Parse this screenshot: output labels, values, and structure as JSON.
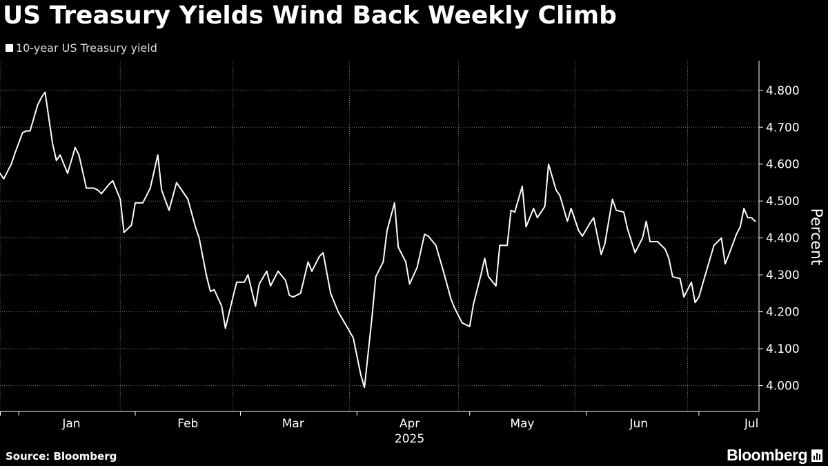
{
  "title": "US Treasury Yields Wind Back Weekly Climb",
  "legend": {
    "label": "10-year US Treasury yield",
    "color": "#ffffff"
  },
  "source": "Source: Bloomberg",
  "logo": {
    "text": "Bloomberg",
    "icon": "bloomberg-terminal-icon"
  },
  "chart_data": {
    "type": "line",
    "title": "US Treasury Yields Wind Back Weekly Climb",
    "ylabel": "Percent",
    "xlabel": "2025",
    "ylim": [
      3.93,
      4.88
    ],
    "yticks": [
      4.0,
      4.1,
      4.2,
      4.3,
      4.4,
      4.5,
      4.6,
      4.7,
      4.8
    ],
    "ytick_labels": [
      "4.000",
      "4.100",
      "4.200",
      "4.300",
      "4.400",
      "4.500",
      "4.600",
      "4.700",
      "4.800"
    ],
    "xlim": [
      "2024-12-27",
      "2025-07-17"
    ],
    "x_month_labels": [
      {
        "date": "2025-01-15",
        "label": "Jan"
      },
      {
        "date": "2025-02-15",
        "label": "Feb"
      },
      {
        "date": "2025-03-15",
        "label": "Mar"
      },
      {
        "date": "2025-04-15",
        "label": "Apr"
      },
      {
        "date": "2025-05-15",
        "label": "May"
      },
      {
        "date": "2025-06-15",
        "label": "Jun"
      },
      {
        "date": "2025-07-15",
        "label": "Jul"
      }
    ],
    "x_year_label": {
      "date": "2025-04-15",
      "label": "2025"
    },
    "gridlines": [
      "2024-12-27",
      "2025-01-28",
      "2025-02-27",
      "2025-03-30",
      "2025-04-28",
      "2025-05-29",
      "2025-06-28"
    ],
    "month_boundaries": [
      "2025-01-01",
      "2025-02-01",
      "2025-03-01",
      "2025-04-01",
      "2025-05-01",
      "2025-06-01",
      "2025-07-01"
    ],
    "grid": true,
    "legend_position": "top-left",
    "series": [
      {
        "name": "10-year US Treasury yield",
        "color": "#ffffff",
        "points": [
          [
            "2024-12-27",
            4.575
          ],
          [
            "2024-12-28",
            4.56
          ],
          [
            "2024-12-30",
            4.6
          ],
          [
            "2024-12-31",
            4.63
          ],
          [
            "2025-01-02",
            4.685
          ],
          [
            "2025-01-03",
            4.69
          ],
          [
            "2025-01-04",
            4.69
          ],
          [
            "2025-01-06",
            4.76
          ],
          [
            "2025-01-07",
            4.78
          ],
          [
            "2025-01-08",
            4.795
          ],
          [
            "2025-01-10",
            4.655
          ],
          [
            "2025-01-11",
            4.61
          ],
          [
            "2025-01-12",
            4.625
          ],
          [
            "2025-01-14",
            4.575
          ],
          [
            "2025-01-15",
            4.61
          ],
          [
            "2025-01-16",
            4.645
          ],
          [
            "2025-01-17",
            4.625
          ],
          [
            "2025-01-19",
            4.535
          ],
          [
            "2025-01-21",
            4.535
          ],
          [
            "2025-01-22",
            4.53
          ],
          [
            "2025-01-23",
            4.52
          ],
          [
            "2025-01-25",
            4.545
          ],
          [
            "2025-01-26",
            4.555
          ],
          [
            "2025-01-28",
            4.505
          ],
          [
            "2025-01-29",
            4.415
          ],
          [
            "2025-01-31",
            4.435
          ],
          [
            "2025-02-01",
            4.495
          ],
          [
            "2025-02-03",
            4.495
          ],
          [
            "2025-02-05",
            4.535
          ],
          [
            "2025-02-07",
            4.625
          ],
          [
            "2025-02-08",
            4.53
          ],
          [
            "2025-02-10",
            4.475
          ],
          [
            "2025-02-12",
            4.55
          ],
          [
            "2025-02-13",
            4.535
          ],
          [
            "2025-02-15",
            4.505
          ],
          [
            "2025-02-17",
            4.43
          ],
          [
            "2025-02-18",
            4.4
          ],
          [
            "2025-02-20",
            4.295
          ],
          [
            "2025-02-21",
            4.255
          ],
          [
            "2025-02-22",
            4.26
          ],
          [
            "2025-02-24",
            4.215
          ],
          [
            "2025-02-25",
            4.155
          ],
          [
            "2025-02-27",
            4.24
          ],
          [
            "2025-02-28",
            4.28
          ],
          [
            "2025-03-02",
            4.28
          ],
          [
            "2025-03-03",
            4.3
          ],
          [
            "2025-03-05",
            4.215
          ],
          [
            "2025-03-06",
            4.275
          ],
          [
            "2025-03-08",
            4.31
          ],
          [
            "2025-03-09",
            4.27
          ],
          [
            "2025-03-11",
            4.31
          ],
          [
            "2025-03-13",
            4.285
          ],
          [
            "2025-03-14",
            4.245
          ],
          [
            "2025-03-15",
            4.24
          ],
          [
            "2025-03-17",
            4.25
          ],
          [
            "2025-03-19",
            4.335
          ],
          [
            "2025-03-20",
            4.31
          ],
          [
            "2025-03-22",
            4.35
          ],
          [
            "2025-03-23",
            4.36
          ],
          [
            "2025-03-25",
            4.25
          ],
          [
            "2025-03-27",
            4.2
          ],
          [
            "2025-03-29",
            4.165
          ],
          [
            "2025-03-31",
            4.13
          ],
          [
            "2025-04-02",
            4.03
          ],
          [
            "2025-04-03",
            3.995
          ],
          [
            "2025-04-05",
            4.185
          ],
          [
            "2025-04-06",
            4.295
          ],
          [
            "2025-04-08",
            4.335
          ],
          [
            "2025-04-09",
            4.42
          ],
          [
            "2025-04-11",
            4.495
          ],
          [
            "2025-04-12",
            4.375
          ],
          [
            "2025-04-14",
            4.335
          ],
          [
            "2025-04-15",
            4.275
          ],
          [
            "2025-04-17",
            4.32
          ],
          [
            "2025-04-19",
            4.41
          ],
          [
            "2025-04-20",
            4.405
          ],
          [
            "2025-04-22",
            4.38
          ],
          [
            "2025-04-24",
            4.31
          ],
          [
            "2025-04-26",
            4.235
          ],
          [
            "2025-04-27",
            4.21
          ],
          [
            "2025-04-29",
            4.17
          ],
          [
            "2025-05-01",
            4.16
          ],
          [
            "2025-05-02",
            4.22
          ],
          [
            "2025-05-04",
            4.3
          ],
          [
            "2025-05-05",
            4.345
          ],
          [
            "2025-05-06",
            4.295
          ],
          [
            "2025-05-08",
            4.27
          ],
          [
            "2025-05-09",
            4.38
          ],
          [
            "2025-05-11",
            4.38
          ],
          [
            "2025-05-12",
            4.475
          ],
          [
            "2025-05-13",
            4.47
          ],
          [
            "2025-05-15",
            4.54
          ],
          [
            "2025-05-16",
            4.43
          ],
          [
            "2025-05-18",
            4.48
          ],
          [
            "2025-05-19",
            4.455
          ],
          [
            "2025-05-21",
            4.485
          ],
          [
            "2025-05-22",
            4.6
          ],
          [
            "2025-05-24",
            4.53
          ],
          [
            "2025-05-25",
            4.515
          ],
          [
            "2025-05-27",
            4.445
          ],
          [
            "2025-05-28",
            4.48
          ],
          [
            "2025-05-30",
            4.42
          ],
          [
            "2025-05-31",
            4.405
          ],
          [
            "2025-06-02",
            4.44
          ],
          [
            "2025-06-03",
            4.455
          ],
          [
            "2025-06-05",
            4.355
          ],
          [
            "2025-06-06",
            4.385
          ],
          [
            "2025-06-08",
            4.505
          ],
          [
            "2025-06-09",
            4.475
          ],
          [
            "2025-06-11",
            4.47
          ],
          [
            "2025-06-12",
            4.425
          ],
          [
            "2025-06-14",
            4.36
          ],
          [
            "2025-06-16",
            4.4
          ],
          [
            "2025-06-17",
            4.445
          ],
          [
            "2025-06-18",
            4.39
          ],
          [
            "2025-06-20",
            4.39
          ],
          [
            "2025-06-22",
            4.37
          ],
          [
            "2025-06-23",
            4.345
          ],
          [
            "2025-06-24",
            4.295
          ],
          [
            "2025-06-26",
            4.29
          ],
          [
            "2025-06-27",
            4.24
          ],
          [
            "2025-06-29",
            4.28
          ],
          [
            "2025-06-30",
            4.225
          ],
          [
            "2025-07-01",
            4.24
          ],
          [
            "2025-07-02",
            4.275
          ],
          [
            "2025-07-04",
            4.345
          ],
          [
            "2025-07-05",
            4.38
          ],
          [
            "2025-07-07",
            4.4
          ],
          [
            "2025-07-08",
            4.33
          ],
          [
            "2025-07-09",
            4.355
          ],
          [
            "2025-07-11",
            4.41
          ],
          [
            "2025-07-12",
            4.43
          ],
          [
            "2025-07-13",
            4.48
          ],
          [
            "2025-07-14",
            4.455
          ],
          [
            "2025-07-15",
            4.455
          ],
          [
            "2025-07-16",
            4.445
          ]
        ]
      }
    ]
  }
}
